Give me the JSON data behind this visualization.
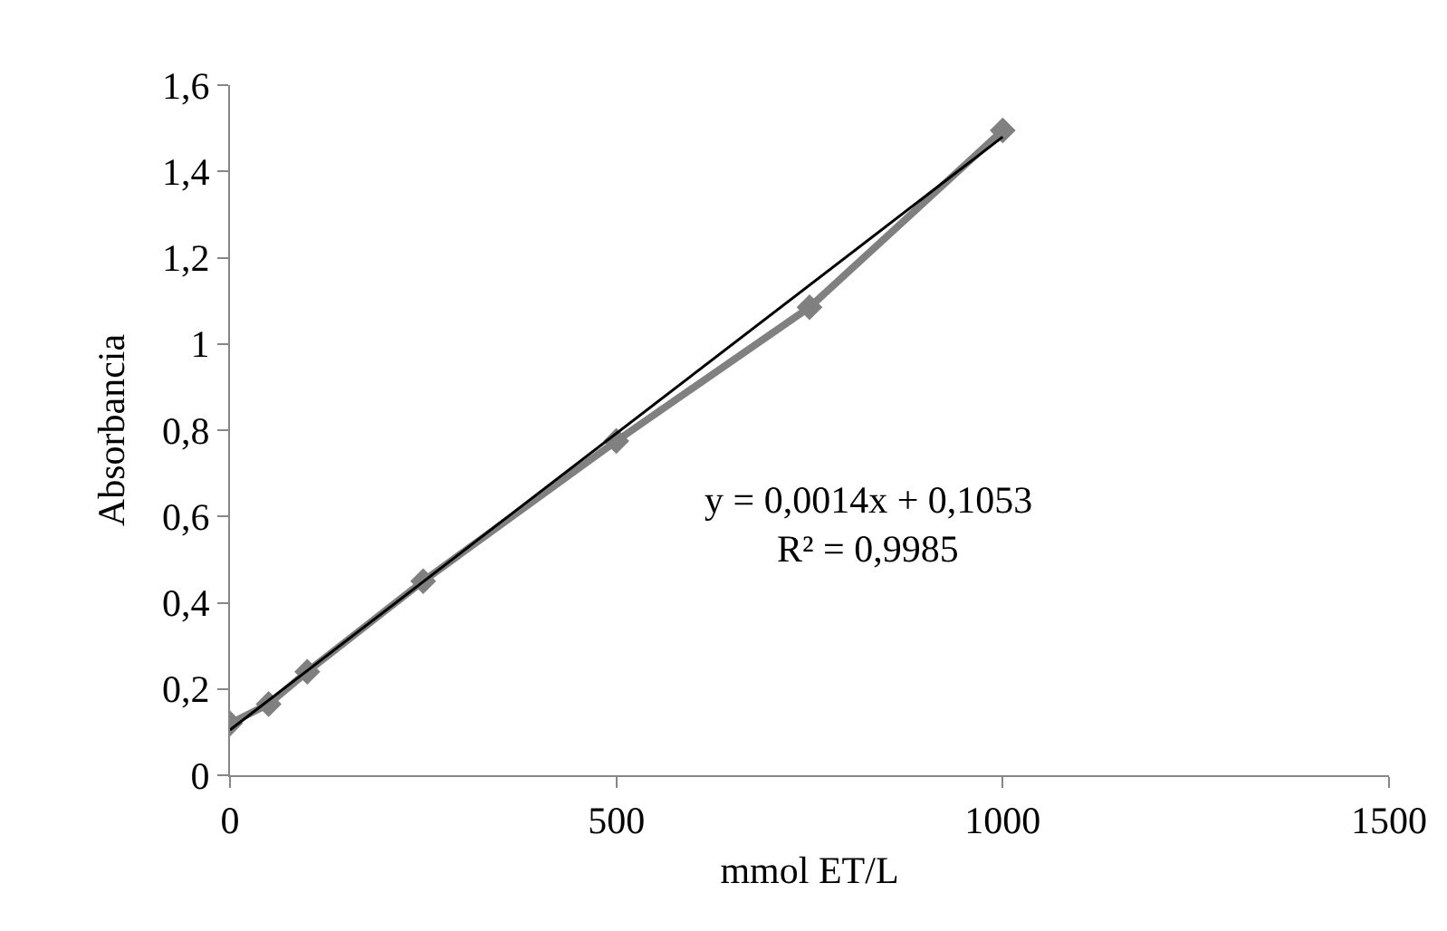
{
  "chart_data": {
    "type": "line",
    "xlabel": "mmol ET/L",
    "ylabel": "Absorbancia",
    "x": [
      0,
      50,
      100,
      250,
      500,
      750,
      1000
    ],
    "series": [
      {
        "color": "#808080",
        "values": [
          0.12,
          0.165,
          0.24,
          0.45,
          0.775,
          1.085,
          1.495
        ],
        "marker": "diamond"
      },
      {
        "type": "line",
        "color": "#000000",
        "x": [
          0,
          1000
        ],
        "values": [
          0.105,
          1.48
        ],
        "marker": "none"
      }
    ],
    "xlim": [
      0,
      1500
    ],
    "xticks": [
      0,
      500,
      1000,
      1500
    ],
    "ylim": [
      0,
      1.6
    ],
    "yticks": [
      0,
      {
        "value": 0.2,
        "label": "0,2"
      },
      {
        "value": 0.4,
        "label": "0,4"
      },
      {
        "value": 0.6,
        "label": "0,6"
      },
      {
        "value": 0.8,
        "label": "0,8"
      },
      1,
      {
        "value": 1.2,
        "label": "1,2"
      },
      {
        "value": 1.4,
        "label": "1,4"
      },
      {
        "value": 1.6,
        "label": "1,6"
      }
    ],
    "grid": false,
    "annotations": [
      "y = 0,0014x + 0,1053",
      "R² = 0,9985"
    ]
  }
}
